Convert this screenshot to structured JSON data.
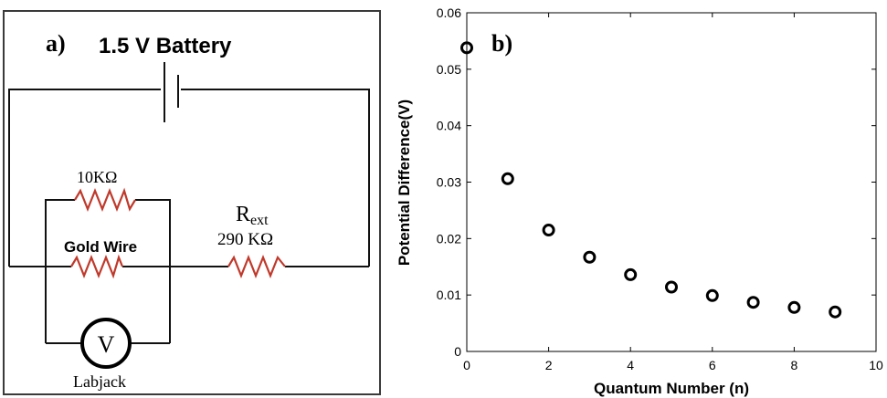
{
  "circuit": {
    "panel_label": "a)",
    "battery_label": "1.5 V Battery",
    "resistor_top_label": "10KΩ",
    "gold_wire_label": "Gold Wire",
    "rext_main": "R",
    "rext_sub": "ext",
    "rext_value": "290 KΩ",
    "voltmeter_symbol": "V",
    "labjack_label": "Labjack",
    "resistor_color": "#c0392b"
  },
  "chart": {
    "panel_label": "b)"
  },
  "chart_data": {
    "type": "scatter",
    "xlabel": "Quantum Number (n)",
    "ylabel": "Potential Difference(V)",
    "xlim": [
      0,
      10
    ],
    "ylim": [
      0,
      0.06
    ],
    "xticks": [
      "0",
      "2",
      "4",
      "6",
      "8",
      "10"
    ],
    "yticks": [
      "0",
      "0.01",
      "0.02",
      "0.03",
      "0.04",
      "0.05",
      "0.06"
    ],
    "marker": "open-circle",
    "x": [
      0,
      1,
      2,
      3,
      4,
      5,
      6,
      7,
      8,
      9
    ],
    "y": [
      0.0538,
      0.0306,
      0.0215,
      0.0167,
      0.0136,
      0.0114,
      0.0099,
      0.0087,
      0.0078,
      0.007
    ]
  }
}
